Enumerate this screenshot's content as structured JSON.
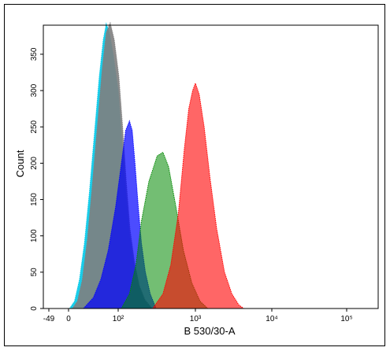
{
  "chart_data": {
    "type": "area",
    "title": "",
    "xlabel": "B 530/30-A",
    "ylabel": "Count",
    "x_scale": "biexponential",
    "ylim": [
      0,
      390
    ],
    "y_ticks": [
      0,
      50,
      100,
      150,
      200,
      250,
      300,
      350
    ],
    "y_tick_labels": [
      "0",
      "50",
      "100",
      "150",
      "200",
      "250",
      "300",
      "350"
    ],
    "x_ticks": [
      {
        "label": "-49",
        "value": -49
      },
      {
        "label": "0",
        "value": 0
      },
      {
        "label": "10²",
        "value": 100
      },
      {
        "label": "10³",
        "value": 1000
      },
      {
        "label": "10⁴",
        "value": 10000
      },
      {
        "label": "10⁵",
        "value": 100000
      }
    ],
    "grid": false,
    "legend": "none",
    "series": [
      {
        "color": "#00c8e8",
        "fill_opacity": 0.9,
        "order": 1,
        "points": [
          [
            2,
            0
          ],
          [
            12,
            10
          ],
          [
            22,
            40
          ],
          [
            32,
            90
          ],
          [
            42,
            160
          ],
          [
            52,
            240
          ],
          [
            62,
            320
          ],
          [
            70,
            370
          ],
          [
            76,
            392
          ],
          [
            82,
            380
          ],
          [
            90,
            350
          ],
          [
            100,
            300
          ],
          [
            112,
            230
          ],
          [
            125,
            160
          ],
          [
            140,
            100
          ],
          [
            160,
            60
          ],
          [
            185,
            30
          ],
          [
            220,
            10
          ],
          [
            270,
            0
          ]
        ]
      },
      {
        "color": "#7f7f7f",
        "fill_opacity": 0.9,
        "order": 2,
        "points": [
          [
            8,
            0
          ],
          [
            18,
            10
          ],
          [
            28,
            40
          ],
          [
            38,
            95
          ],
          [
            48,
            170
          ],
          [
            58,
            250
          ],
          [
            68,
            330
          ],
          [
            76,
            380
          ],
          [
            84,
            393
          ],
          [
            92,
            370
          ],
          [
            102,
            320
          ],
          [
            114,
            250
          ],
          [
            127,
            175
          ],
          [
            142,
            110
          ],
          [
            162,
            65
          ],
          [
            187,
            32
          ],
          [
            222,
            12
          ],
          [
            275,
            0
          ]
        ]
      },
      {
        "color": "#0000ff",
        "fill_opacity": 0.7,
        "order": 3,
        "points": [
          [
            30,
            0
          ],
          [
            50,
            15
          ],
          [
            65,
            40
          ],
          [
            80,
            80
          ],
          [
            95,
            140
          ],
          [
            110,
            200
          ],
          [
            125,
            245
          ],
          [
            140,
            258
          ],
          [
            152,
            245
          ],
          [
            165,
            200
          ],
          [
            182,
            140
          ],
          [
            200,
            90
          ],
          [
            225,
            50
          ],
          [
            260,
            20
          ],
          [
            310,
            0
          ]
        ]
      },
      {
        "color": "#008800",
        "fill_opacity": 0.55,
        "order": 4,
        "points": [
          [
            110,
            0
          ],
          [
            140,
            20
          ],
          [
            170,
            60
          ],
          [
            200,
            120
          ],
          [
            250,
            175
          ],
          [
            320,
            210
          ],
          [
            380,
            215
          ],
          [
            450,
            195
          ],
          [
            560,
            140
          ],
          [
            700,
            80
          ],
          [
            900,
            35
          ],
          [
            1150,
            10
          ],
          [
            1450,
            0
          ]
        ]
      },
      {
        "color": "#ff0000",
        "fill_opacity": 0.6,
        "order": 5,
        "points": [
          [
            280,
            0
          ],
          [
            380,
            20
          ],
          [
            480,
            60
          ],
          [
            600,
            130
          ],
          [
            720,
            220
          ],
          [
            820,
            275
          ],
          [
            920,
            300
          ],
          [
            1000,
            310
          ],
          [
            1120,
            295
          ],
          [
            1300,
            250
          ],
          [
            1550,
            180
          ],
          [
            1900,
            110
          ],
          [
            2400,
            50
          ],
          [
            3000,
            20
          ],
          [
            3700,
            5
          ],
          [
            4300,
            0
          ]
        ]
      }
    ]
  }
}
